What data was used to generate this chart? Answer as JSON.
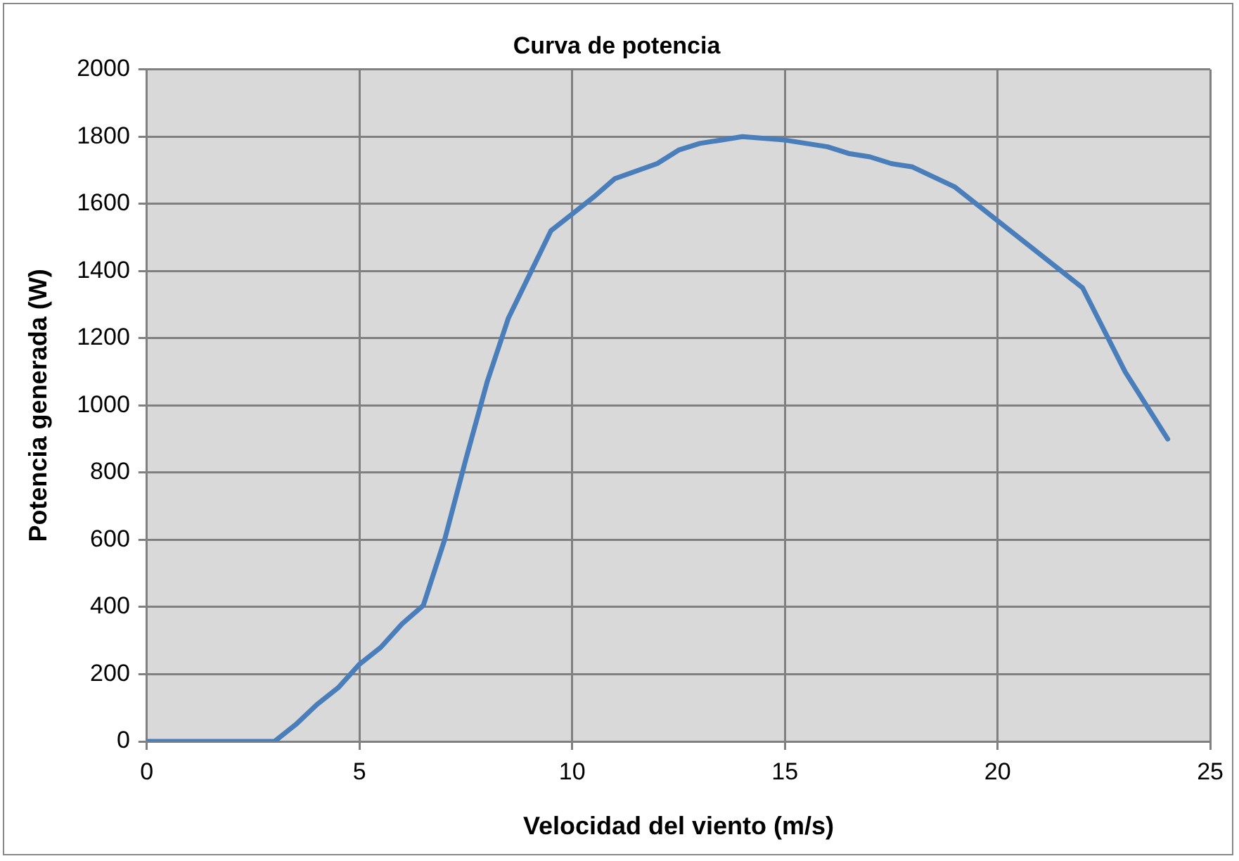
{
  "chart_data": {
    "type": "line",
    "title": "Curva de potencia",
    "xlabel": "Velocidad del viento (m/s)",
    "ylabel": "Potencia generada (W)",
    "series": [
      {
        "color": "#4a7ebb",
        "x": [
          0,
          3,
          3.5,
          4,
          4.5,
          5,
          5.5,
          6,
          6.5,
          7,
          7.5,
          8,
          8.5,
          9,
          9.5,
          10,
          10.5,
          11,
          12,
          12.5,
          13,
          14,
          15,
          16,
          16.5,
          17,
          17.5,
          18,
          19,
          20,
          21,
          22,
          23,
          24
        ],
        "values": [
          0,
          0,
          50,
          110,
          160,
          230,
          280,
          350,
          405,
          600,
          840,
          1070,
          1260,
          1390,
          1520,
          1570,
          1620,
          1675,
          1720,
          1760,
          1780,
          1800,
          1790,
          1770,
          1750,
          1740,
          1720,
          1710,
          1650,
          1550,
          1450,
          1350,
          1100,
          900
        ]
      }
    ],
    "xlim": [
      0,
      25
    ],
    "xticks": [
      0,
      5,
      10,
      15,
      20,
      25
    ],
    "ylim": [
      0,
      2000
    ],
    "yticks": [
      0,
      200,
      400,
      600,
      800,
      1000,
      1200,
      1400,
      1600,
      1800,
      2000
    ],
    "grid": true,
    "legend": false,
    "marker": "none",
    "line_style": "solid"
  }
}
